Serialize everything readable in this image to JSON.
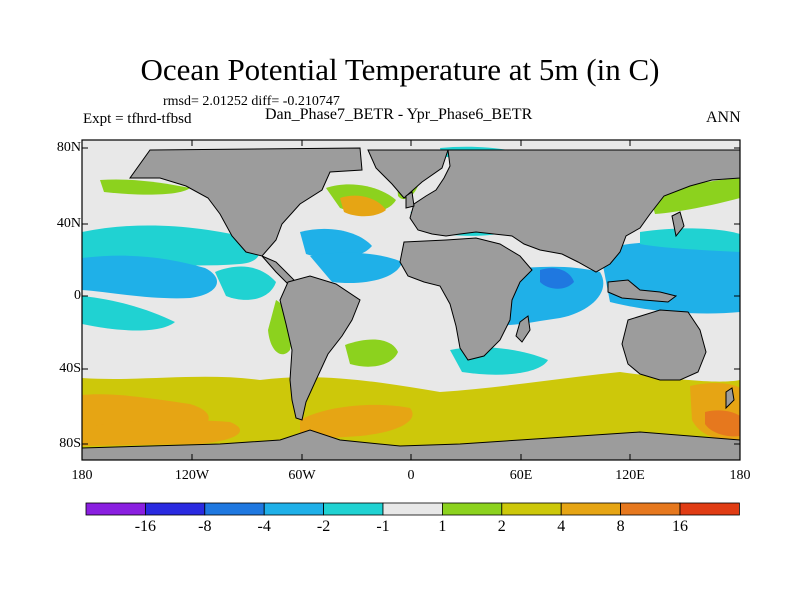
{
  "figure": {
    "title": "Ocean Potential Temperature at 5m (in C)",
    "stats": "rmsd= 2.01252  diff= -0.210747",
    "experiment": "Expt = tfhrd-tfbsd",
    "comparison": "Dan_Phase7_BETR - Ypr_Phase6_BETR",
    "season": "ANN"
  },
  "axes": {
    "lat_labels": [
      "80N",
      "40N",
      "0",
      "40S",
      "80S"
    ],
    "lon_labels": [
      "180",
      "120W",
      "60W",
      "0",
      "60E",
      "120E",
      "180"
    ]
  },
  "colorbar": {
    "labels": [
      "-16",
      "-8",
      "-4",
      "-2",
      "-1",
      "1",
      "2",
      "4",
      "8",
      "16"
    ],
    "colors": [
      "#8a1fe0",
      "#2a2ae0",
      "#1f78e0",
      "#1fb0e8",
      "#20d2d2",
      "#e8e8e8",
      "#8cd21e",
      "#cdc80a",
      "#e6a514",
      "#e6781e",
      "#e03c14"
    ]
  },
  "map_colors": {
    "land": "#9c9c9c",
    "background": "#e8e8e8"
  }
}
